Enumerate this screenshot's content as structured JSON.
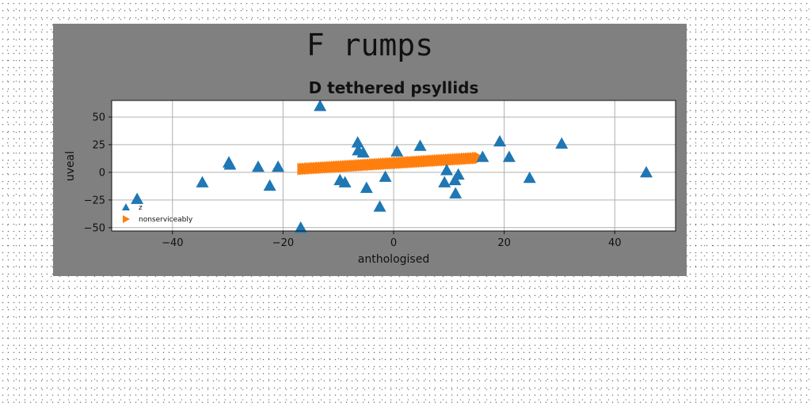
{
  "chart_data": {
    "type": "scatter",
    "suptitle": "F rumps",
    "title": "D tethered psyllids",
    "xlabel": "anthologised",
    "ylabel": "uveal",
    "xlim": [
      -51,
      51
    ],
    "ylim": [
      -53,
      65
    ],
    "xticks": [
      -40,
      -20,
      0,
      20,
      40
    ],
    "yticks": [
      -50,
      -25,
      0,
      25,
      50
    ],
    "xtick_labels": [
      "−40",
      "−20",
      "0",
      "20",
      "40"
    ],
    "ytick_labels": [
      "−50",
      "−25",
      "0",
      "25",
      "50"
    ],
    "grid": true,
    "legend_position": "lower-left",
    "series": [
      {
        "name": "z",
        "marker": "triangle-up",
        "color": "#1f77b4",
        "points": [
          {
            "x": -46.4,
            "y": -24
          },
          {
            "x": -34.6,
            "y": -9
          },
          {
            "x": -29.8,
            "y": 9
          },
          {
            "x": -29.6,
            "y": 7
          },
          {
            "x": -24.5,
            "y": 5
          },
          {
            "x": -22.4,
            "y": -12
          },
          {
            "x": -20.9,
            "y": 5
          },
          {
            "x": -16.8,
            "y": -50
          },
          {
            "x": -13.3,
            "y": 60
          },
          {
            "x": -9.7,
            "y": -7
          },
          {
            "x": -8.8,
            "y": -9
          },
          {
            "x": -6.5,
            "y": 27
          },
          {
            "x": -6.4,
            "y": 20
          },
          {
            "x": -5.5,
            "y": 18
          },
          {
            "x": -4.9,
            "y": -14
          },
          {
            "x": -2.5,
            "y": -31
          },
          {
            "x": -1.5,
            "y": -4
          },
          {
            "x": 0.6,
            "y": 19
          },
          {
            "x": 4.8,
            "y": 24
          },
          {
            "x": 9.2,
            "y": -9
          },
          {
            "x": 9.6,
            "y": 2
          },
          {
            "x": 11.1,
            "y": -7
          },
          {
            "x": 11.2,
            "y": -19
          },
          {
            "x": 11.7,
            "y": -2
          },
          {
            "x": 16.1,
            "y": 14
          },
          {
            "x": 19.2,
            "y": 28
          },
          {
            "x": 20.9,
            "y": 14
          },
          {
            "x": 24.6,
            "y": -5
          },
          {
            "x": 30.4,
            "y": 26
          },
          {
            "x": 45.7,
            "y": 0
          }
        ]
      },
      {
        "name": "nonserviceably",
        "marker": "triangle-right",
        "color": "#ff7f0e",
        "x_start": -16.5,
        "y_start": 3,
        "x_end": 15.5,
        "y_end": 13,
        "count": 80
      }
    ]
  }
}
